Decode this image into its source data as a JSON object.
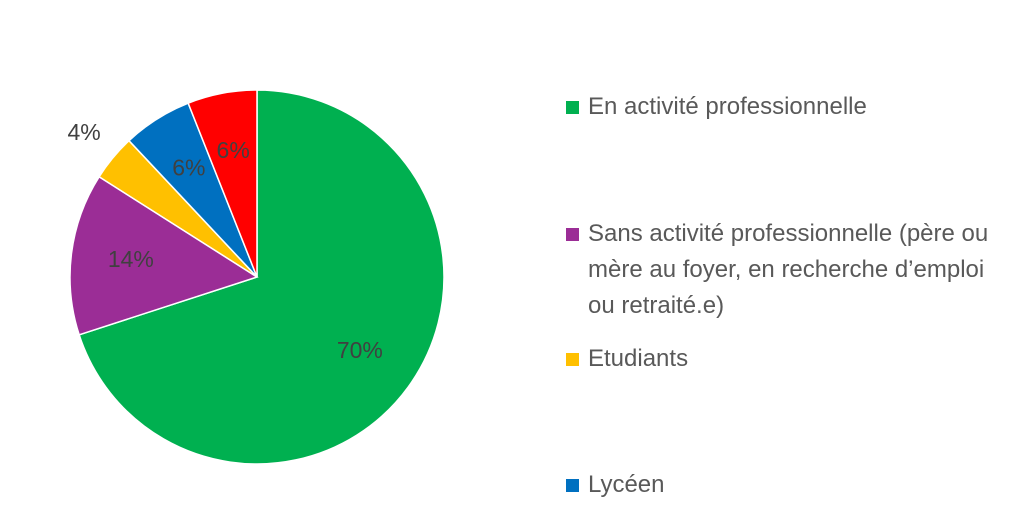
{
  "chart_data": {
    "type": "pie",
    "categories": [
      "En activité professionnelle",
      "Sans activité professionnelle (père ou mère au foyer, en recherche d’emploi ou retraité.e)",
      "Etudiants",
      "Lycéen",
      null
    ],
    "values": [
      70,
      14,
      4,
      6,
      6
    ],
    "value_labels": [
      "70%",
      "14%",
      "4%",
      "6%",
      "6%"
    ],
    "colors": [
      "#00b050",
      "#9b2d96",
      "#ffc000",
      "#0070c0",
      "#ff0000"
    ]
  }
}
